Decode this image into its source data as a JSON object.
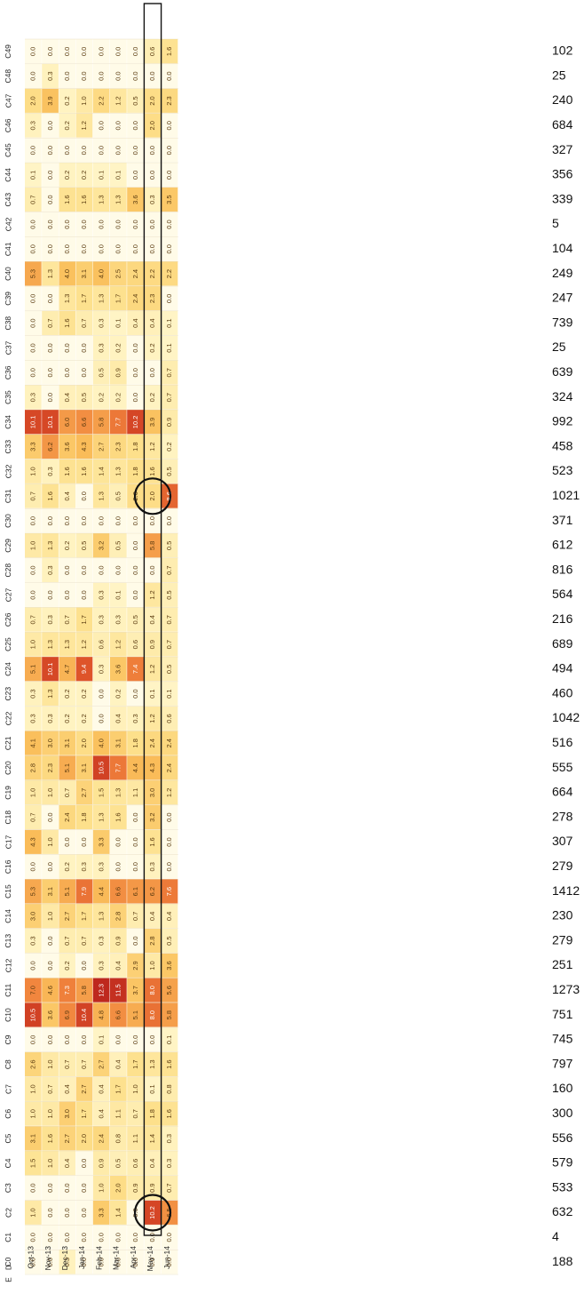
{
  "chart_data": {
    "type": "heatmap",
    "row_header_letters": [
      "E",
      "D"
    ],
    "columns": [
      "C0",
      "C1",
      "C2",
      "C3",
      "C4",
      "C5",
      "C6",
      "C7",
      "C8",
      "C9",
      "C10",
      "C11",
      "C12",
      "C13",
      "C14",
      "C15",
      "C16",
      "C17",
      "C18",
      "C19",
      "C20",
      "C21",
      "C22",
      "C23",
      "C24",
      "C25",
      "C26",
      "C27",
      "C28",
      "C29",
      "C30",
      "C31",
      "C32",
      "C33",
      "C34",
      "C35",
      "C36",
      "C37",
      "C38",
      "C39",
      "C40",
      "C41",
      "C42",
      "C43",
      "C44",
      "C45",
      "C46",
      "C47",
      "C48",
      "C49"
    ],
    "totals": [
      188,
      4,
      632,
      533,
      579,
      556,
      300,
      160,
      797,
      745,
      751,
      1273,
      251,
      279,
      230,
      1412,
      279,
      307,
      278,
      664,
      555,
      516,
      1042,
      460,
      494,
      689,
      216,
      564,
      816,
      612,
      371,
      1021,
      523,
      458,
      992,
      324,
      639,
      25,
      739,
      247,
      249,
      104,
      5,
      339,
      356,
      327,
      684,
      240,
      25,
      102
    ],
    "months": [
      {
        "label": "Oct-13",
        "values": [
          0.0,
          0.0,
          1.0,
          0.0,
          1.5,
          3.1,
          1.0,
          1.0,
          2.6,
          0.0,
          10.5,
          7.0,
          0.0,
          0.3,
          3.0,
          5.3,
          0.0,
          4.3,
          0.7,
          1.0,
          2.8,
          4.1,
          0.3,
          0.3,
          5.1,
          1.0,
          0.7,
          0.0,
          0.0,
          1.0,
          0.0,
          0.7,
          1.0,
          3.3,
          10.1,
          0.3,
          0.0,
          0.0,
          0.0,
          0.0,
          5.3,
          0.0,
          0.0,
          0.7,
          0.1,
          0.0,
          0.3,
          2.0,
          0.0,
          0.0
        ]
      },
      {
        "label": "Nov-13",
        "values": [
          0.0,
          0.0,
          0.0,
          0.0,
          1.0,
          1.6,
          1.0,
          0.7,
          1.0,
          0.0,
          3.6,
          4.6,
          0.0,
          0.0,
          1.0,
          3.1,
          0.0,
          1.0,
          0.0,
          1.0,
          2.3,
          3.0,
          0.3,
          1.3,
          10.1,
          1.3,
          0.3,
          0.0,
          0.3,
          1.3,
          0.0,
          1.6,
          0.3,
          6.2,
          10.1,
          0.0,
          0.0,
          0.0,
          0.7,
          0.0,
          1.3,
          0.0,
          0.0,
          0.0,
          0.0,
          0.0,
          0.0,
          3.9,
          0.3,
          0.0
        ]
      },
      {
        "label": "Dec-13",
        "values": [
          0.3,
          0.0,
          0.0,
          0.0,
          0.4,
          2.7,
          3.0,
          0.4,
          0.7,
          0.0,
          6.9,
          7.3,
          0.2,
          0.7,
          2.7,
          5.1,
          0.2,
          0.0,
          2.4,
          0.7,
          5.1,
          3.1,
          0.2,
          0.2,
          4.7,
          1.3,
          0.7,
          0.0,
          0.0,
          0.2,
          0.0,
          0.4,
          1.6,
          3.6,
          6.0,
          0.4,
          0.0,
          0.0,
          1.6,
          1.3,
          4.0,
          0.0,
          0.0,
          1.6,
          0.2,
          0.0,
          0.2,
          0.2,
          0.0,
          0.0
        ]
      },
      {
        "label": "Jan-14",
        "values": [
          0.0,
          0.0,
          0.0,
          0.0,
          0.0,
          2.0,
          1.7,
          2.7,
          0.7,
          0.0,
          10.4,
          5.8,
          0.0,
          0.7,
          1.7,
          7.9,
          0.3,
          0.0,
          1.8,
          2.7,
          3.1,
          2.0,
          0.2,
          0.2,
          9.4,
          1.2,
          1.7,
          0.0,
          0.0,
          0.5,
          0.0,
          0.0,
          1.6,
          4.3,
          6.6,
          0.5,
          0.0,
          0.0,
          0.7,
          1.7,
          3.1,
          0.0,
          0.0,
          1.6,
          0.2,
          0.0,
          1.2,
          1.0,
          0.0,
          0.0
        ]
      },
      {
        "label": "Feb-14",
        "values": [
          0.0,
          0.0,
          3.3,
          1.0,
          0.9,
          2.4,
          0.4,
          0.4,
          2.7,
          0.1,
          4.8,
          12.3,
          0.3,
          0.3,
          1.3,
          4.4,
          0.3,
          3.3,
          1.3,
          1.5,
          10.5,
          4.0,
          0.0,
          0.0,
          0.3,
          0.6,
          0.3,
          0.3,
          0.0,
          3.2,
          0.0,
          1.3,
          1.4,
          2.7,
          5.8,
          0.2,
          0.5,
          0.3,
          0.3,
          1.3,
          4.0,
          0.0,
          0.0,
          1.3,
          0.1,
          0.0,
          0.0,
          2.2,
          0.0,
          0.0
        ]
      },
      {
        "label": "Mar-14",
        "values": [
          0.0,
          0.0,
          1.4,
          2.0,
          0.5,
          0.8,
          1.1,
          1.7,
          0.4,
          0.0,
          6.6,
          11.5,
          0.4,
          0.9,
          2.8,
          6.6,
          0.0,
          0.0,
          1.6,
          1.3,
          7.7,
          3.1,
          0.4,
          0.2,
          3.6,
          1.2,
          0.3,
          0.1,
          0.0,
          0.5,
          0.0,
          0.5,
          1.3,
          2.3,
          7.7,
          0.2,
          0.9,
          0.2,
          0.1,
          1.7,
          2.5,
          0.0,
          0.0,
          1.3,
          0.1,
          0.0,
          0.0,
          1.2,
          0.0,
          0.0
        ]
      },
      {
        "label": "Apr-14",
        "values": [
          0.0,
          0.0,
          0.0,
          0.9,
          0.6,
          1.1,
          0.7,
          1.0,
          1.7,
          0.0,
          5.1,
          3.7,
          2.9,
          0.0,
          0.7,
          6.1,
          0.0,
          0.0,
          0.0,
          1.1,
          4.4,
          1.8,
          0.3,
          0.0,
          7.4,
          0.6,
          0.5,
          0.0,
          0.0,
          0.0,
          0.0,
          2.0,
          1.8,
          1.8,
          10.2,
          0.0,
          0.0,
          0.0,
          0.4,
          2.4,
          2.4,
          0.0,
          0.0,
          3.6,
          0.0,
          0.0,
          0.0,
          0.5,
          0.0,
          0.0
        ]
      },
      {
        "label": "May-14",
        "values": [
          0.0,
          0.0,
          10.2,
          0.9,
          0.4,
          1.4,
          1.8,
          0.1,
          1.3,
          0.0,
          8.0,
          8.0,
          1.0,
          2.8,
          0.4,
          6.2,
          0.3,
          1.6,
          3.2,
          3.0,
          4.3,
          2.4,
          1.2,
          0.1,
          1.2,
          0.9,
          0.4,
          1.2,
          0.0,
          5.8,
          0.0,
          2.0,
          1.6,
          1.2,
          3.9,
          0.2,
          0.0,
          0.2,
          0.4,
          2.3,
          2.2,
          0.0,
          0.0,
          0.3,
          0.0,
          0.0,
          2.0,
          2.0,
          0.0,
          0.6
        ]
      },
      {
        "label": "Jun-14",
        "values": [
          0.0,
          0.0,
          6.5,
          0.7,
          0.3,
          0.3,
          1.6,
          0.8,
          1.6,
          0.1,
          5.8,
          5.6,
          3.6,
          0.5,
          0.4,
          7.6,
          0.0,
          0.0,
          0.0,
          1.2,
          2.4,
          2.4,
          0.6,
          0.1,
          0.5,
          0.7,
          0.7,
          0.5,
          0.7,
          0.5,
          0.0,
          8.6,
          0.5,
          0.2,
          0.9,
          0.7,
          0.7,
          0.1,
          0.1,
          0.0,
          2.2,
          0.0,
          0.0,
          3.5,
          0.0,
          0.0,
          0.0,
          2.3,
          0.0,
          1.6
        ]
      }
    ]
  }
}
